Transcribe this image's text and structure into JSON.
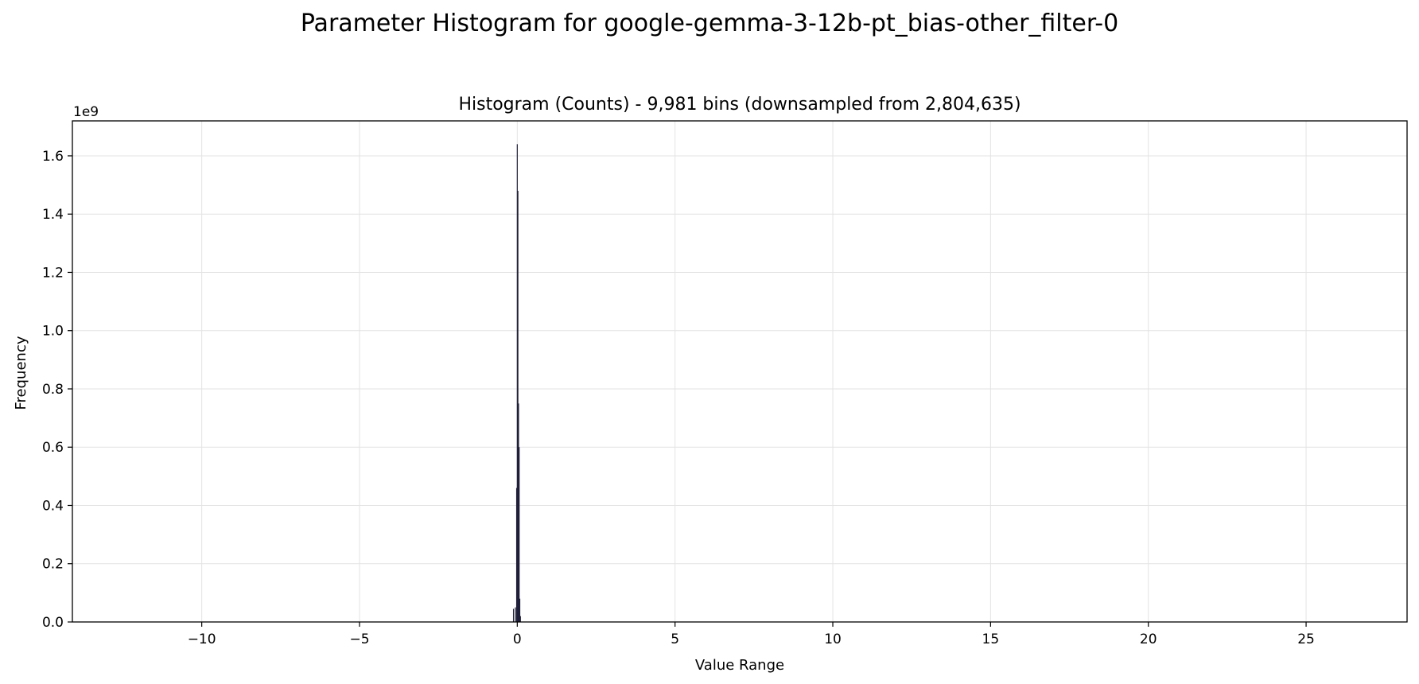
{
  "figure_title": "Parameter Histogram for google-gemma-3-12b-pt_bias-other_filter-0",
  "chart_data": {
    "type": "bar",
    "title": "Histogram (Counts) - 9,981 bins (downsampled from 2,804,635)",
    "xlabel": "Value Range",
    "ylabel": "Frequency",
    "y_offset_label": "1e9",
    "xlim": [
      -14.1,
      28.2
    ],
    "ylim": [
      0,
      1720000000
    ],
    "x_ticks": [
      -10,
      -5,
      0,
      5,
      10,
      15,
      20,
      25
    ],
    "x_tick_labels": [
      "−10",
      "−5",
      "0",
      "5",
      "10",
      "15",
      "20",
      "25"
    ],
    "y_ticks": [
      0,
      200000000,
      400000000,
      600000000,
      800000000,
      1000000000,
      1200000000,
      1400000000,
      1600000000
    ],
    "y_tick_labels": [
      "0.0",
      "0.2",
      "0.4",
      "0.6",
      "0.8",
      "1.0",
      "1.2",
      "1.4",
      "1.6"
    ],
    "grid": true,
    "bar_color": "#1f1f3a",
    "bars": [
      {
        "x": -0.12,
        "value": 45000000
      },
      {
        "x": -0.06,
        "value": 50000000
      },
      {
        "x": -0.02,
        "value": 460000000
      },
      {
        "x": 0.0,
        "value": 1640000000
      },
      {
        "x": 0.02,
        "value": 1480000000
      },
      {
        "x": 0.04,
        "value": 750000000
      },
      {
        "x": 0.06,
        "value": 600000000
      },
      {
        "x": 0.08,
        "value": 80000000
      },
      {
        "x": 0.1,
        "value": 20000000
      }
    ]
  }
}
